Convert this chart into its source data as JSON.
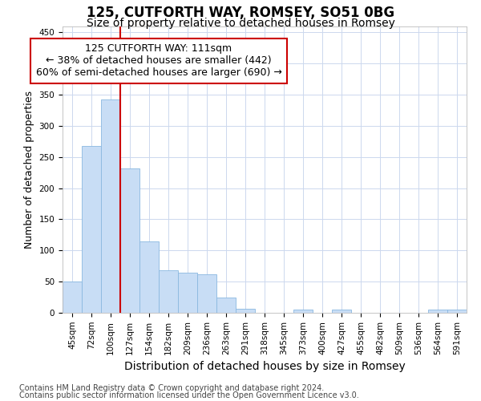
{
  "title": "125, CUTFORTH WAY, ROMSEY, SO51 0BG",
  "subtitle": "Size of property relative to detached houses in Romsey",
  "xlabel": "Distribution of detached houses by size in Romsey",
  "ylabel": "Number of detached properties",
  "categories": [
    "45sqm",
    "72sqm",
    "100sqm",
    "127sqm",
    "154sqm",
    "182sqm",
    "209sqm",
    "236sqm",
    "263sqm",
    "291sqm",
    "318sqm",
    "345sqm",
    "373sqm",
    "400sqm",
    "427sqm",
    "455sqm",
    "482sqm",
    "509sqm",
    "536sqm",
    "564sqm",
    "591sqm"
  ],
  "values": [
    50,
    268,
    342,
    232,
    114,
    68,
    64,
    62,
    25,
    7,
    0,
    0,
    5,
    0,
    5,
    0,
    0,
    0,
    0,
    5,
    5
  ],
  "bar_color": "#c8ddf5",
  "bar_edge_color": "#8ab8e0",
  "vline_color": "#cc0000",
  "vline_x": 2.5,
  "annotation_label": "125 CUTFORTH WAY: 111sqm",
  "annotation_line1": "← 38% of detached houses are smaller (442)",
  "annotation_line2": "60% of semi-detached houses are larger (690) →",
  "footer1": "Contains HM Land Registry data © Crown copyright and database right 2024.",
  "footer2": "Contains public sector information licensed under the Open Government Licence v3.0.",
  "title_fontsize": 12,
  "subtitle_fontsize": 10,
  "tick_fontsize": 7.5,
  "ylabel_fontsize": 9,
  "xlabel_fontsize": 10,
  "annotation_fontsize": 9,
  "footer_fontsize": 7,
  "ylim": [
    0,
    460
  ],
  "yticks": [
    0,
    50,
    100,
    150,
    200,
    250,
    300,
    350,
    400,
    450
  ],
  "background_color": "#ffffff",
  "grid_color": "#ccd8ee"
}
